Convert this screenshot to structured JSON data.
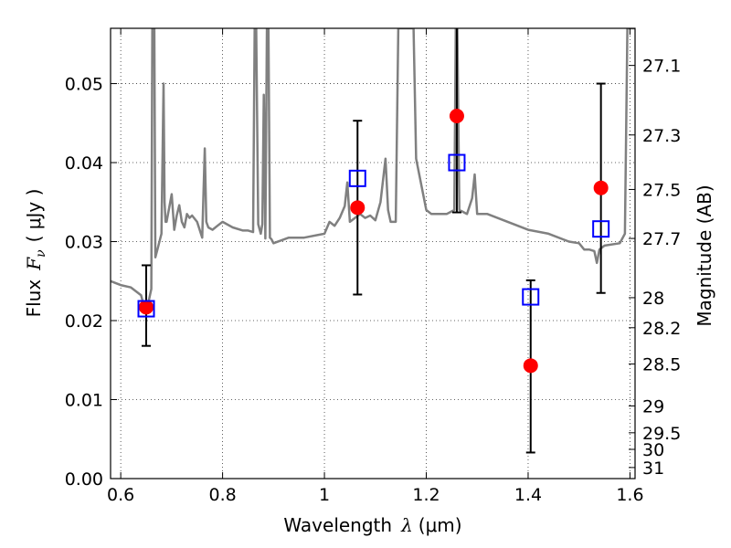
{
  "chart_data": {
    "type": "scatter",
    "xlabel": "Wavelength",
    "xlabel_symbol": "λ",
    "xlabel_unit": "(μm)",
    "ylabel": "Flux",
    "ylabel_symbol": "F",
    "ylabel_subscript": "ν",
    "ylabel_unit": "( μJy )",
    "y2label": "Magnitude (AB)",
    "xlim": [
      0.58,
      1.61
    ],
    "ylim": [
      0.0,
      0.057
    ],
    "grid": true,
    "x_ticks": [
      0.6,
      0.8,
      1.0,
      1.2,
      1.4,
      1.6
    ],
    "x_tick_labels": [
      "0.6",
      "0.8",
      "1",
      "1.2",
      "1.4",
      "1.6"
    ],
    "y_ticks": [
      0.0,
      0.01,
      0.02,
      0.03,
      0.04,
      0.05
    ],
    "y_tick_labels": [
      "0.00",
      "0.01",
      "0.02",
      "0.03",
      "0.04",
      "0.05"
    ],
    "y2_ticks": [
      {
        "label": "27.1",
        "flux": 0.0523
      },
      {
        "label": "27.3",
        "flux": 0.0435
      },
      {
        "label": "27.5",
        "flux": 0.0366
      },
      {
        "label": "27.7",
        "flux": 0.0304
      },
      {
        "label": "28",
        "flux": 0.0229
      },
      {
        "label": "28.2",
        "flux": 0.0191
      },
      {
        "label": "28.5",
        "flux": 0.0145
      },
      {
        "label": "29",
        "flux": 0.0092
      },
      {
        "label": "29.5",
        "flux": 0.0058
      },
      {
        "label": "30",
        "flux": 0.0037
      },
      {
        "label": "31",
        "flux": 0.0014
      }
    ],
    "series": [
      {
        "kind": "line",
        "color": "#808080",
        "x": [
          0.58,
          0.6,
          0.62,
          0.64,
          0.645,
          0.655,
          0.66,
          0.662,
          0.664,
          0.666,
          0.668,
          0.672,
          0.676,
          0.68,
          0.684,
          0.686,
          0.688,
          0.69,
          0.7,
          0.705,
          0.71,
          0.715,
          0.72,
          0.725,
          0.73,
          0.735,
          0.74,
          0.75,
          0.76,
          0.765,
          0.768,
          0.772,
          0.78,
          0.79,
          0.8,
          0.82,
          0.84,
          0.85,
          0.86,
          0.863,
          0.866,
          0.87,
          0.875,
          0.878,
          0.881,
          0.884,
          0.887,
          0.89,
          0.893,
          0.896,
          0.9,
          0.93,
          0.96,
          1.0,
          1.01,
          1.02,
          1.03,
          1.04,
          1.045,
          1.05,
          1.06,
          1.07,
          1.08,
          1.09,
          1.1,
          1.11,
          1.12,
          1.125,
          1.13,
          1.14,
          1.145,
          1.15,
          1.17,
          1.175,
          1.18,
          1.2,
          1.21,
          1.24,
          1.255,
          1.258,
          1.261,
          1.265,
          1.28,
          1.29,
          1.295,
          1.3,
          1.32,
          1.36,
          1.4,
          1.44,
          1.48,
          1.5,
          1.51,
          1.52,
          1.53,
          1.535,
          1.54,
          1.55,
          1.58,
          1.59,
          1.595,
          1.6,
          1.61
        ],
        "y": [
          0.025,
          0.0245,
          0.0242,
          0.0232,
          0.022,
          0.0225,
          0.024,
          0.057,
          0.057,
          0.057,
          0.028,
          0.029,
          0.03,
          0.031,
          0.05,
          0.035,
          0.0325,
          0.0325,
          0.036,
          0.0315,
          0.0333,
          0.0346,
          0.0325,
          0.0318,
          0.0335,
          0.033,
          0.0333,
          0.0325,
          0.0305,
          0.0418,
          0.0325,
          0.0318,
          0.0315,
          0.032,
          0.0325,
          0.0318,
          0.0314,
          0.0314,
          0.0312,
          0.057,
          0.057,
          0.0322,
          0.031,
          0.0322,
          0.0486,
          0.0304,
          0.057,
          0.057,
          0.0305,
          0.0303,
          0.0298,
          0.0305,
          0.0305,
          0.031,
          0.0325,
          0.032,
          0.033,
          0.0345,
          0.0375,
          0.0325,
          0.033,
          0.0335,
          0.033,
          0.0333,
          0.0327,
          0.035,
          0.0405,
          0.034,
          0.0325,
          0.0325,
          0.057,
          0.057,
          0.057,
          0.057,
          0.0405,
          0.034,
          0.0335,
          0.0335,
          0.034,
          0.057,
          0.057,
          0.034,
          0.0335,
          0.0355,
          0.0385,
          0.0335,
          0.0335,
          0.0325,
          0.0315,
          0.031,
          0.03,
          0.0298,
          0.029,
          0.029,
          0.0288,
          0.0273,
          0.029,
          0.0295,
          0.0298,
          0.031,
          0.057,
          0.057,
          0.057
        ]
      },
      {
        "kind": "points",
        "marker": "circle",
        "color": "#ff0000",
        "x": [
          0.65,
          1.065,
          1.26,
          1.405,
          1.543
        ],
        "y": [
          0.0217,
          0.0343,
          0.0459,
          0.0143,
          0.0368
        ]
      },
      {
        "kind": "points",
        "marker": "square",
        "color": "#0000ff",
        "x": [
          0.65,
          1.065,
          1.26,
          1.405,
          1.543
        ],
        "y": [
          0.0215,
          0.038,
          0.04,
          0.023,
          0.0316
        ],
        "err_low": [
          0.0168,
          0.0233,
          0.0337,
          0.0033,
          0.0235
        ],
        "err_high": [
          0.027,
          0.0453,
          0.057,
          0.0251,
          0.05
        ]
      }
    ]
  }
}
